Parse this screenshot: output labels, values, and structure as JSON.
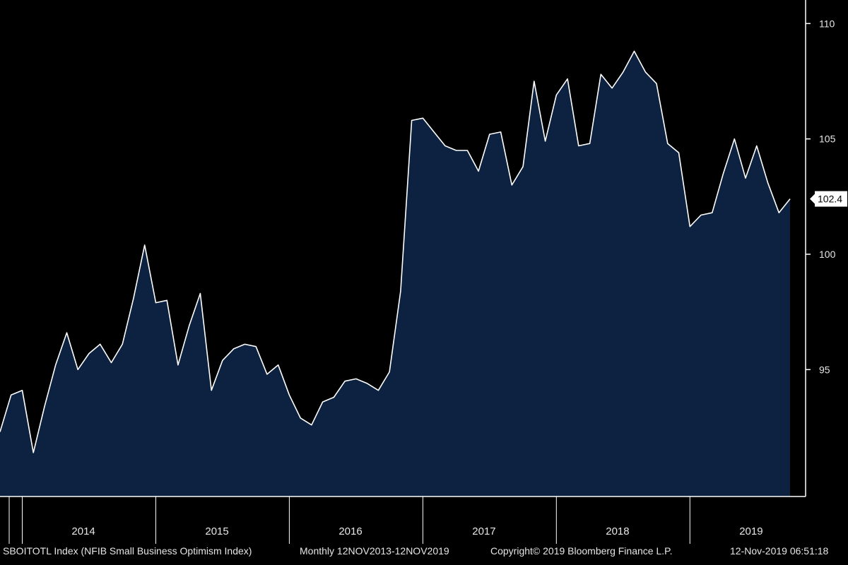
{
  "chart_data": {
    "type": "area",
    "x": [
      "2013-11",
      "2013-12",
      "2014-01",
      "2014-02",
      "2014-03",
      "2014-04",
      "2014-05",
      "2014-06",
      "2014-07",
      "2014-08",
      "2014-09",
      "2014-10",
      "2014-11",
      "2014-12",
      "2015-01",
      "2015-02",
      "2015-03",
      "2015-04",
      "2015-05",
      "2015-06",
      "2015-07",
      "2015-08",
      "2015-09",
      "2015-10",
      "2015-11",
      "2015-12",
      "2016-01",
      "2016-02",
      "2016-03",
      "2016-04",
      "2016-05",
      "2016-06",
      "2016-07",
      "2016-08",
      "2016-09",
      "2016-10",
      "2016-11",
      "2016-12",
      "2017-01",
      "2017-02",
      "2017-03",
      "2017-04",
      "2017-05",
      "2017-06",
      "2017-07",
      "2017-08",
      "2017-09",
      "2017-10",
      "2017-11",
      "2017-12",
      "2018-01",
      "2018-02",
      "2018-03",
      "2018-04",
      "2018-05",
      "2018-06",
      "2018-07",
      "2018-08",
      "2018-09",
      "2018-10",
      "2018-11",
      "2018-12",
      "2019-01",
      "2019-02",
      "2019-03",
      "2019-04",
      "2019-05",
      "2019-06",
      "2019-07",
      "2019-08",
      "2019-09",
      "2019-10"
    ],
    "values": [
      92.3,
      93.9,
      94.1,
      91.4,
      93.4,
      95.2,
      96.6,
      95.0,
      95.7,
      96.1,
      95.3,
      96.1,
      98.1,
      100.4,
      97.9,
      98.0,
      95.2,
      96.9,
      98.3,
      94.1,
      95.4,
      95.9,
      96.1,
      96.0,
      94.8,
      95.2,
      93.9,
      92.9,
      92.6,
      93.6,
      93.8,
      94.5,
      94.6,
      94.4,
      94.1,
      94.9,
      98.4,
      105.8,
      105.9,
      105.3,
      104.7,
      104.5,
      104.5,
      103.6,
      105.2,
      105.3,
      103.0,
      103.8,
      107.5,
      104.9,
      106.9,
      107.6,
      104.7,
      104.8,
      107.8,
      107.2,
      107.9,
      108.8,
      107.9,
      107.4,
      104.8,
      104.4,
      101.2,
      101.7,
      101.8,
      103.5,
      105.0,
      103.3,
      104.7,
      103.1,
      101.8,
      102.4
    ],
    "ylim": [
      89.5,
      110.5
    ],
    "yticks": [
      "110",
      "105",
      "100",
      "95"
    ],
    "xtick_labels": [
      "2014",
      "2015",
      "2016",
      "2017",
      "2018",
      "2019"
    ],
    "last_value_label": "102.4",
    "grid": false,
    "colors": {
      "background": "#000000",
      "area_fill": "#0d2240",
      "line": "#ffffff",
      "axis": "#ffffff"
    }
  },
  "footer": {
    "index": "SBOITOTL Index (NFIB Small Business Optimism Index)",
    "period": "Monthly 12NOV2013-12NOV2019",
    "copyright": "Copyright© 2019 Bloomberg Finance L.P.",
    "timestamp": "12-Nov-2019 06:51:18"
  }
}
